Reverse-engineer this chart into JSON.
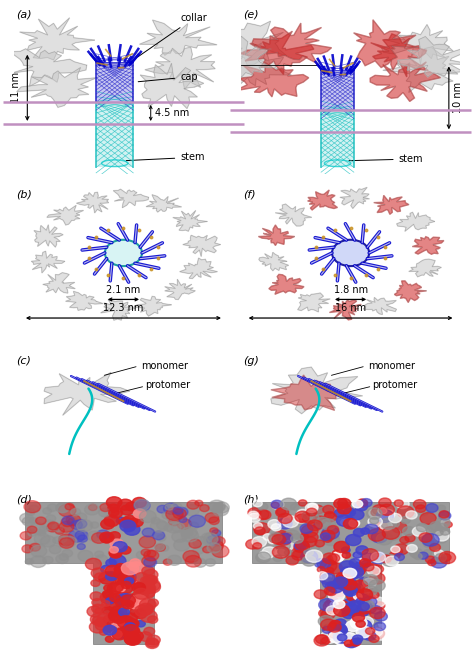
{
  "bg_color": "#ffffff",
  "panel_labels": [
    "(a)",
    "(b)",
    "(c)",
    "(d)",
    "(e)",
    "(f)",
    "(g)",
    "(h)"
  ],
  "annotations_a": {
    "collar": "collar",
    "cap": "cap",
    "stem": "stem",
    "dim1": "11 nm",
    "dim2": "4.5 nm"
  },
  "annotations_e": {
    "dim1": "10 nm"
  },
  "annotations_b": {
    "inner": "2.1 nm",
    "outer": "12.3 nm"
  },
  "annotations_f": {
    "inner": "1.8 nm",
    "outer": "16 nm"
  },
  "membrane_color": "#c8a0c8",
  "cylinder_color_dark": "#1a1acc",
  "cylinder_color_teal": "#00b8b8",
  "font_size_panel": 8,
  "font_size_annot": 7,
  "gray_blob": "#c8c8c8",
  "red_blob": "#cc2222",
  "blue_strand": "#1010cc",
  "teal_loop": "#00b8c0"
}
